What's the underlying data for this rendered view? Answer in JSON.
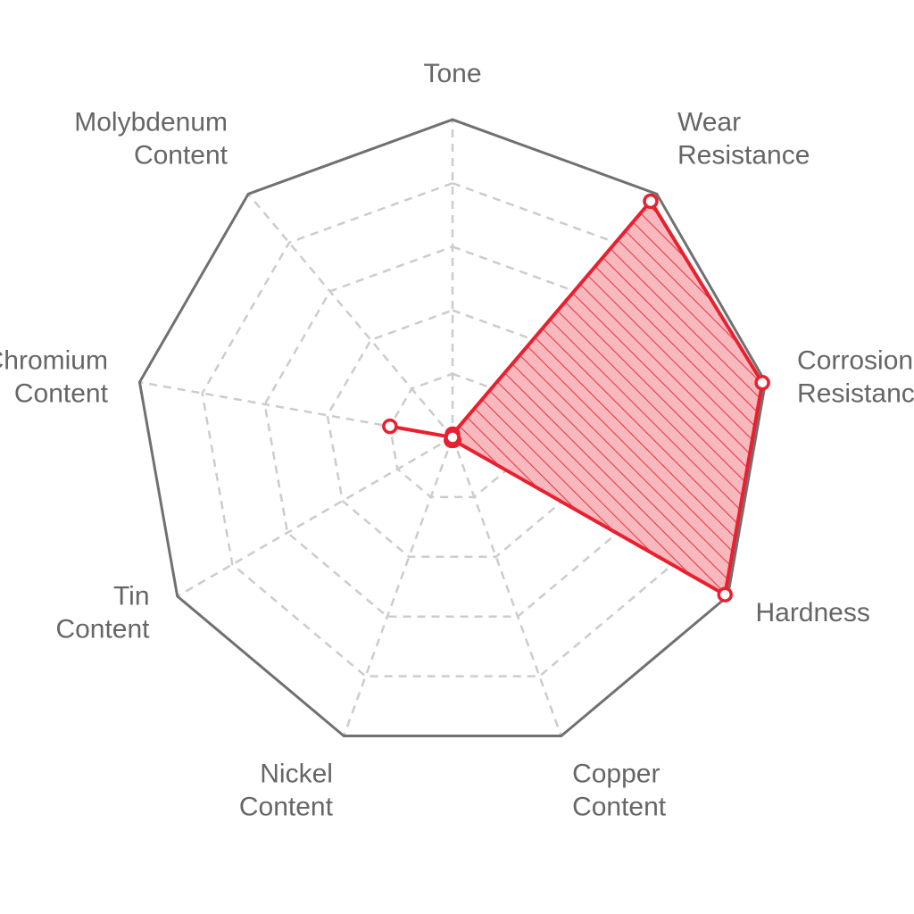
{
  "chart_data": {
    "type": "radar",
    "title": "",
    "axes": [
      [
        "Tone"
      ],
      [
        "Wear",
        "Resistance"
      ],
      [
        "Corrosion",
        "Resistance"
      ],
      [
        "Hardness"
      ],
      [
        "Copper",
        "Content"
      ],
      [
        "Nickel",
        "Content"
      ],
      [
        "Tin",
        "Content"
      ],
      [
        "Chromium",
        "Content"
      ],
      [
        "Molybdenum",
        "Content"
      ]
    ],
    "range": [
      0,
      5
    ],
    "rings": 5,
    "grid": true,
    "legend": "none",
    "series": [
      {
        "name": "",
        "values": [
          0.05,
          4.85,
          4.95,
          4.95,
          0.05,
          0.05,
          0.0,
          1.0,
          0.0
        ],
        "color": "#e8202f",
        "fill": "#f7b8be",
        "hatch": true
      }
    ]
  }
}
